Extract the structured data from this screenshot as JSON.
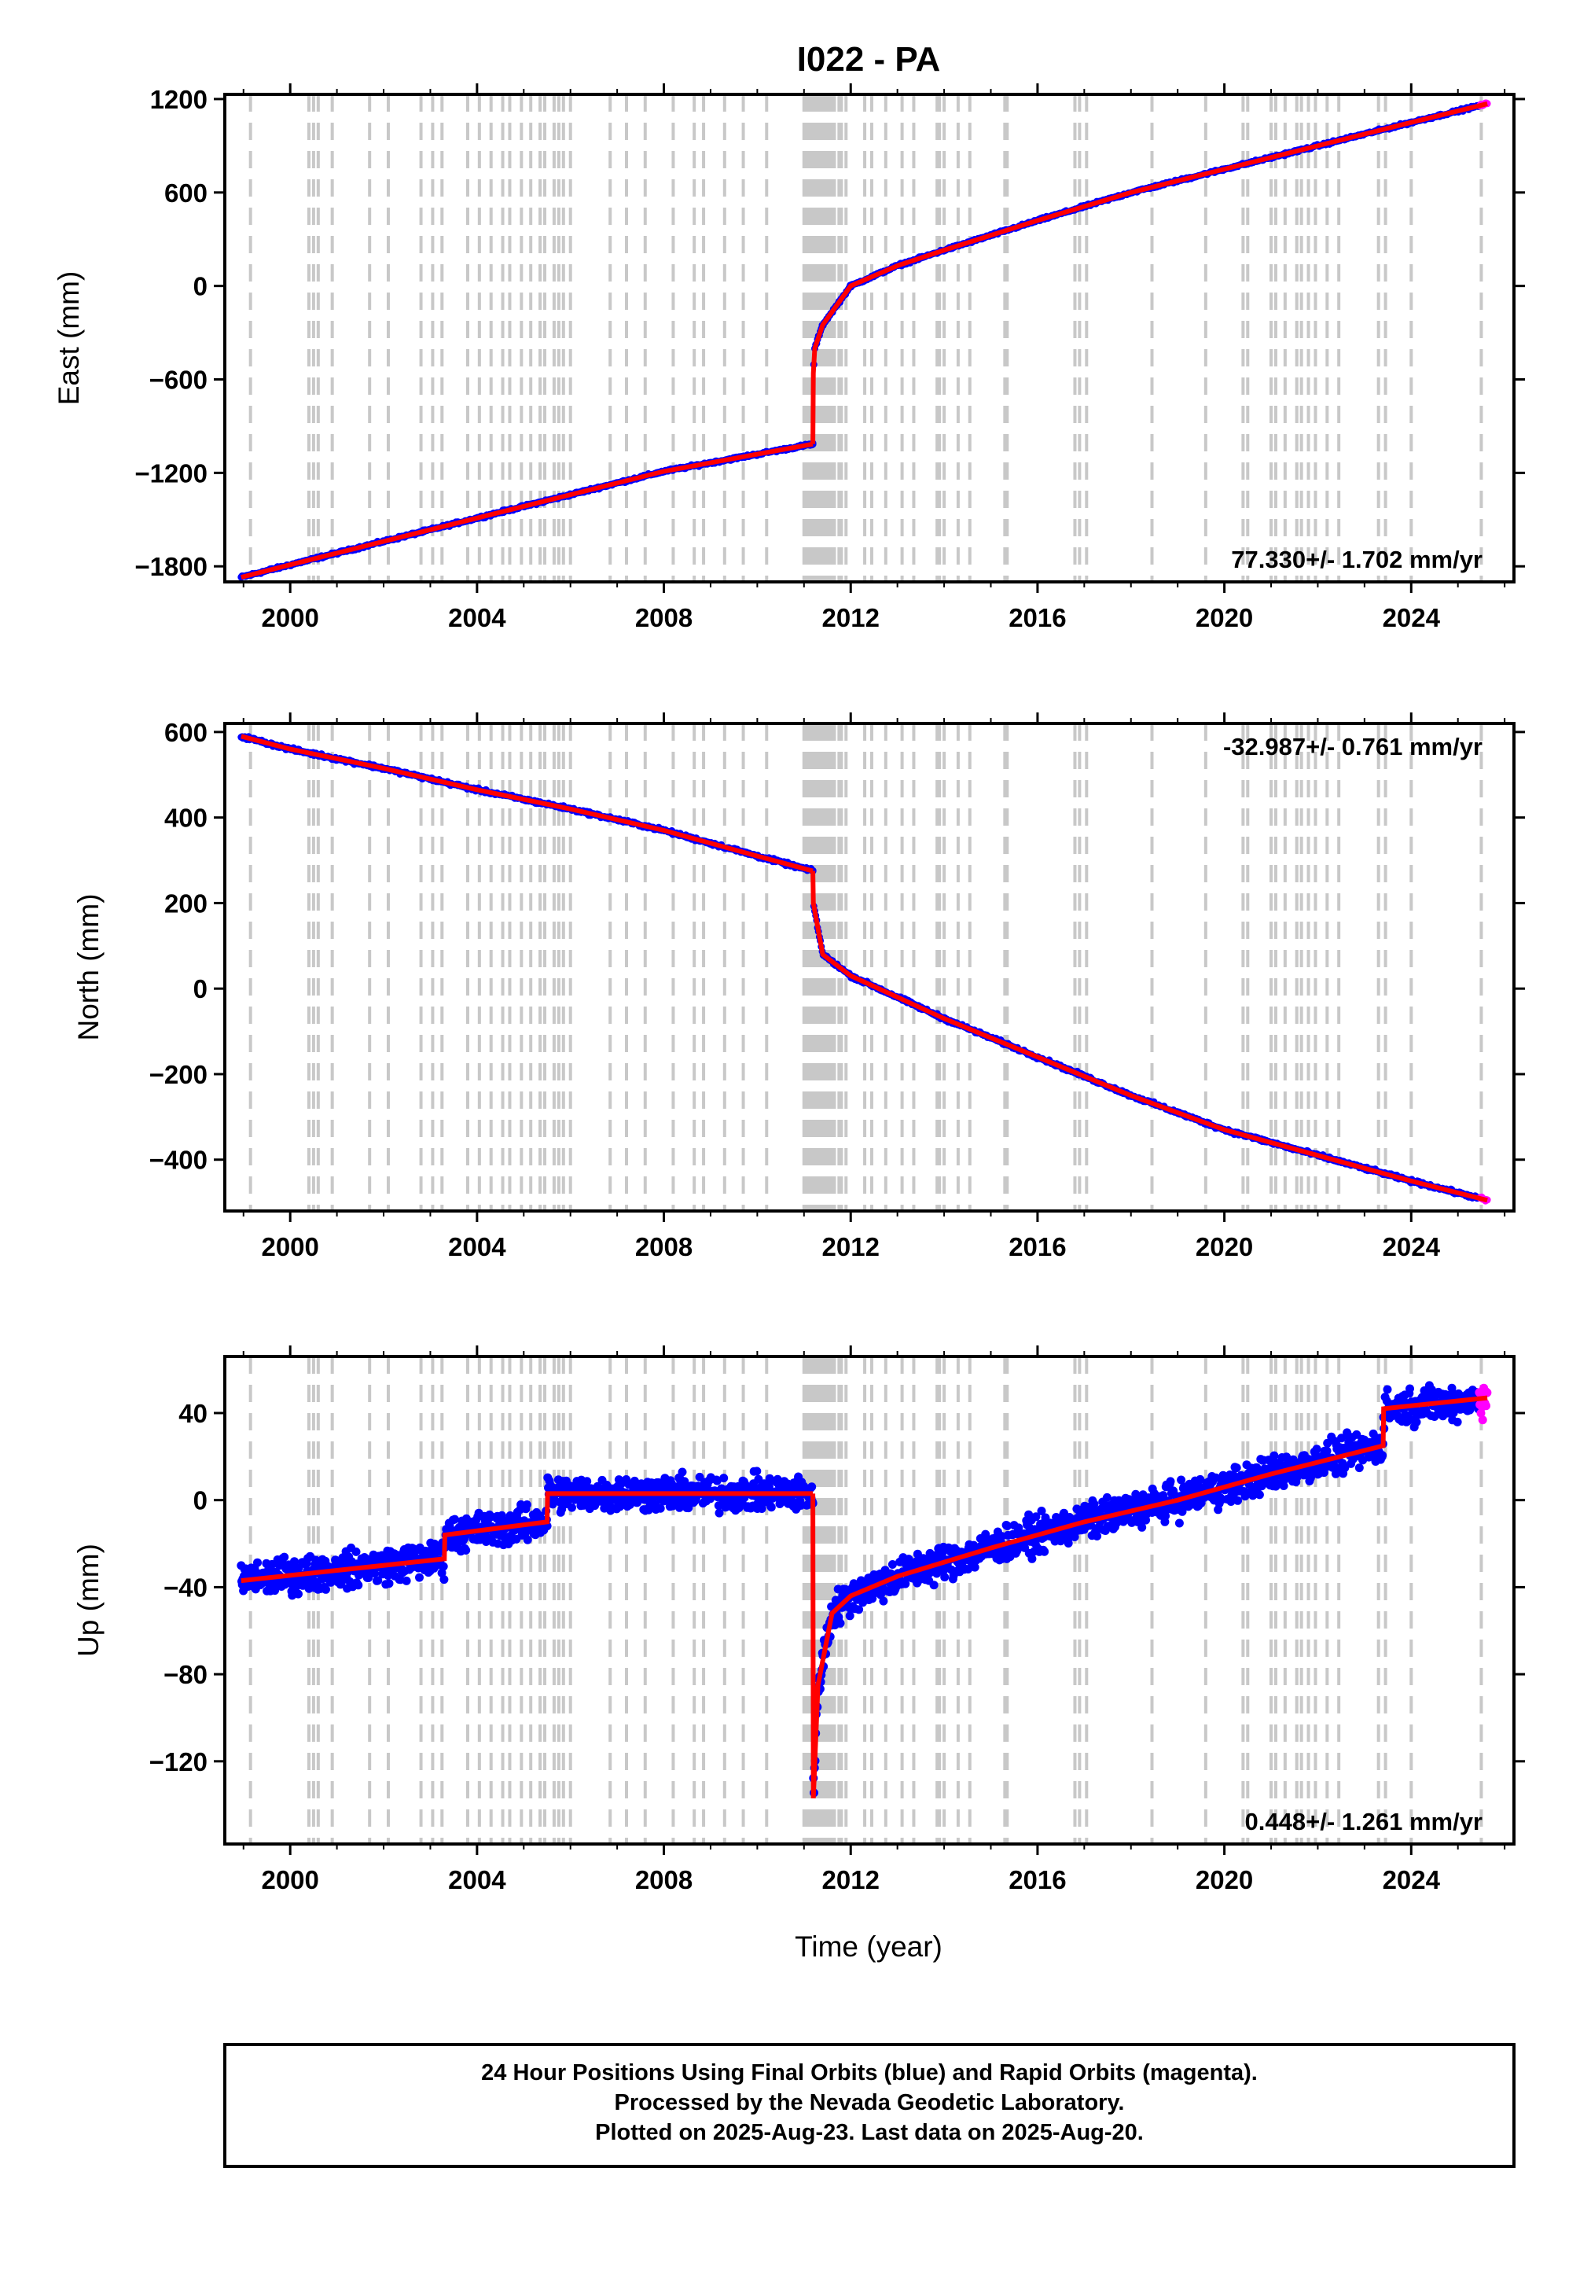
{
  "title": "I022 - PA",
  "xlabel": "Time (year)",
  "colors": {
    "final": "#0000ff",
    "rapid": "#ff00ff",
    "model": "#ff0000",
    "events": "#c8c8c8"
  },
  "footer": {
    "line1": "24 Hour Positions Using Final Orbits (blue) and Rapid Orbits (magenta).",
    "line2": "Processed by the Nevada Geodetic Laboratory.",
    "line3": "Plotted on 2025-Aug-23. Last data on 2025-Aug-20."
  },
  "chart_data": [
    {
      "type": "scatter",
      "component": "east",
      "ylabel": "East (mm)",
      "rate_label": "77.330+/- 1.702 mm/yr",
      "xlim": [
        1998.6,
        2026.2
      ],
      "ylim": [
        -1900,
        1230
      ],
      "xticks": [
        2000,
        2004,
        2008,
        2012,
        2016,
        2020,
        2024
      ],
      "yticks": [
        -1800,
        -1200,
        -600,
        0,
        600,
        1200
      ],
      "yticklabels": [
        "−1800",
        "−1200",
        "−600",
        "0",
        "600",
        "1200"
      ],
      "series": [
        {
          "points": [
            [
              1998.95,
              -1870
            ],
            [
              2000.0,
              -1790
            ],
            [
              2002.0,
              -1640
            ],
            [
              2004.0,
              -1490
            ],
            [
              2006.0,
              -1340
            ],
            [
              2008.0,
              -1190
            ],
            [
              2010.0,
              -1080
            ],
            [
              2011.19,
              -1015
            ]
          ]
        },
        {
          "points": [
            [
              2011.19,
              -1015
            ],
            [
              2011.2,
              -560
            ],
            [
              2011.23,
              -400
            ],
            [
              2011.4,
              -250
            ],
            [
              2012.0,
              0
            ],
            [
              2013.0,
              130
            ],
            [
              2014.0,
              230
            ],
            [
              2016.0,
              420
            ],
            [
              2018.0,
              600
            ],
            [
              2020.0,
              750
            ],
            [
              2022.0,
              900
            ],
            [
              2024.0,
              1050
            ],
            [
              2025.63,
              1170
            ]
          ]
        }
      ]
    },
    {
      "type": "scatter",
      "component": "north",
      "ylabel": "North (mm)",
      "rate_label": "-32.987+/- 0.761 mm/yr",
      "xlim": [
        1998.6,
        2026.2
      ],
      "ylim": [
        -520,
        620
      ],
      "xticks": [
        2000,
        2004,
        2008,
        2012,
        2016,
        2020,
        2024
      ],
      "yticks": [
        -400,
        -200,
        0,
        200,
        400,
        600
      ],
      "yticklabels": [
        "−400",
        "−200",
        "0",
        "200",
        "400",
        "600"
      ],
      "series": [
        {
          "points": [
            [
              1998.95,
              590
            ],
            [
              2000.0,
              560
            ],
            [
              2002.0,
              515
            ],
            [
              2004.0,
              465
            ],
            [
              2006.0,
              420
            ],
            [
              2008.0,
              370
            ],
            [
              2010.0,
              310
            ],
            [
              2011.19,
              275
            ]
          ]
        },
        {
          "points": [
            [
              2011.19,
              275
            ],
            [
              2011.2,
              200
            ],
            [
              2011.4,
              80
            ],
            [
              2012.0,
              30
            ],
            [
              2013.0,
              -20
            ],
            [
              2014.0,
              -70
            ],
            [
              2016.0,
              -160
            ],
            [
              2018.0,
              -250
            ],
            [
              2020.0,
              -330
            ],
            [
              2022.0,
              -390
            ],
            [
              2024.0,
              -450
            ],
            [
              2025.63,
              -495
            ]
          ]
        }
      ]
    },
    {
      "type": "scatter",
      "component": "up",
      "ylabel": "Up (mm)",
      "rate_label": "0.448+/- 1.261 mm/yr",
      "xlim": [
        1998.6,
        2026.2
      ],
      "ylim": [
        -158,
        66
      ],
      "xticks": [
        2000,
        2004,
        2008,
        2012,
        2016,
        2020,
        2024
      ],
      "yticks": [
        -120,
        -80,
        -40,
        0,
        40
      ],
      "yticklabels": [
        "−120",
        "−80",
        "−40",
        "0",
        "40"
      ],
      "series": [
        {
          "points": [
            [
              1998.95,
              -37
            ],
            [
              2003.3,
              -27
            ],
            [
              2003.31,
              -16
            ],
            [
              2005.5,
              -10
            ],
            [
              2005.51,
              3
            ],
            [
              2011.19,
              3
            ]
          ]
        },
        {
          "points": [
            [
              2011.19,
              0
            ],
            [
              2011.2,
              -137
            ],
            [
              2011.3,
              -85
            ],
            [
              2011.6,
              -52
            ],
            [
              2012.0,
              -44
            ],
            [
              2013.0,
              -35
            ],
            [
              2015.0,
              -22
            ],
            [
              2017.0,
              -10
            ],
            [
              2019.0,
              0
            ],
            [
              2021.0,
              12
            ],
            [
              2023.4,
              25
            ],
            [
              2023.41,
              42
            ],
            [
              2025.63,
              47
            ]
          ]
        }
      ]
    }
  ],
  "event_lines": [
    1999.15,
    2000.4,
    2000.5,
    2000.6,
    2000.9,
    2001.7,
    2002.1,
    2002.8,
    2003.05,
    2003.25,
    2003.8,
    2004.05,
    2004.3,
    2004.55,
    2004.7,
    2004.95,
    2005.15,
    2005.35,
    2005.45,
    2005.65,
    2005.75,
    2005.85,
    2006.0,
    2006.85,
    2007.2,
    2007.6,
    2008.2,
    2008.65,
    2008.85,
    2009.3,
    2009.7,
    2010.2,
    2011.0,
    2011.05,
    2011.1,
    2011.15,
    2011.2,
    2011.25,
    2011.3,
    2011.35,
    2011.4,
    2011.45,
    2011.5,
    2011.55,
    2011.6,
    2011.65,
    2011.75,
    2011.8,
    2011.9,
    2012.3,
    2012.45,
    2012.75,
    2013.1,
    2013.35,
    2013.85,
    2013.9,
    2014.0,
    2014.3,
    2014.55,
    2015.3,
    2015.35,
    2016.8,
    2016.9,
    2017.05,
    2018.45,
    2019.6,
    2020.4,
    2020.5,
    2021.0,
    2021.1,
    2021.3,
    2021.55,
    2021.65,
    2021.8,
    2021.95,
    2022.2,
    2022.45,
    2023.3,
    2023.45,
    2024.0,
    2025.5
  ]
}
